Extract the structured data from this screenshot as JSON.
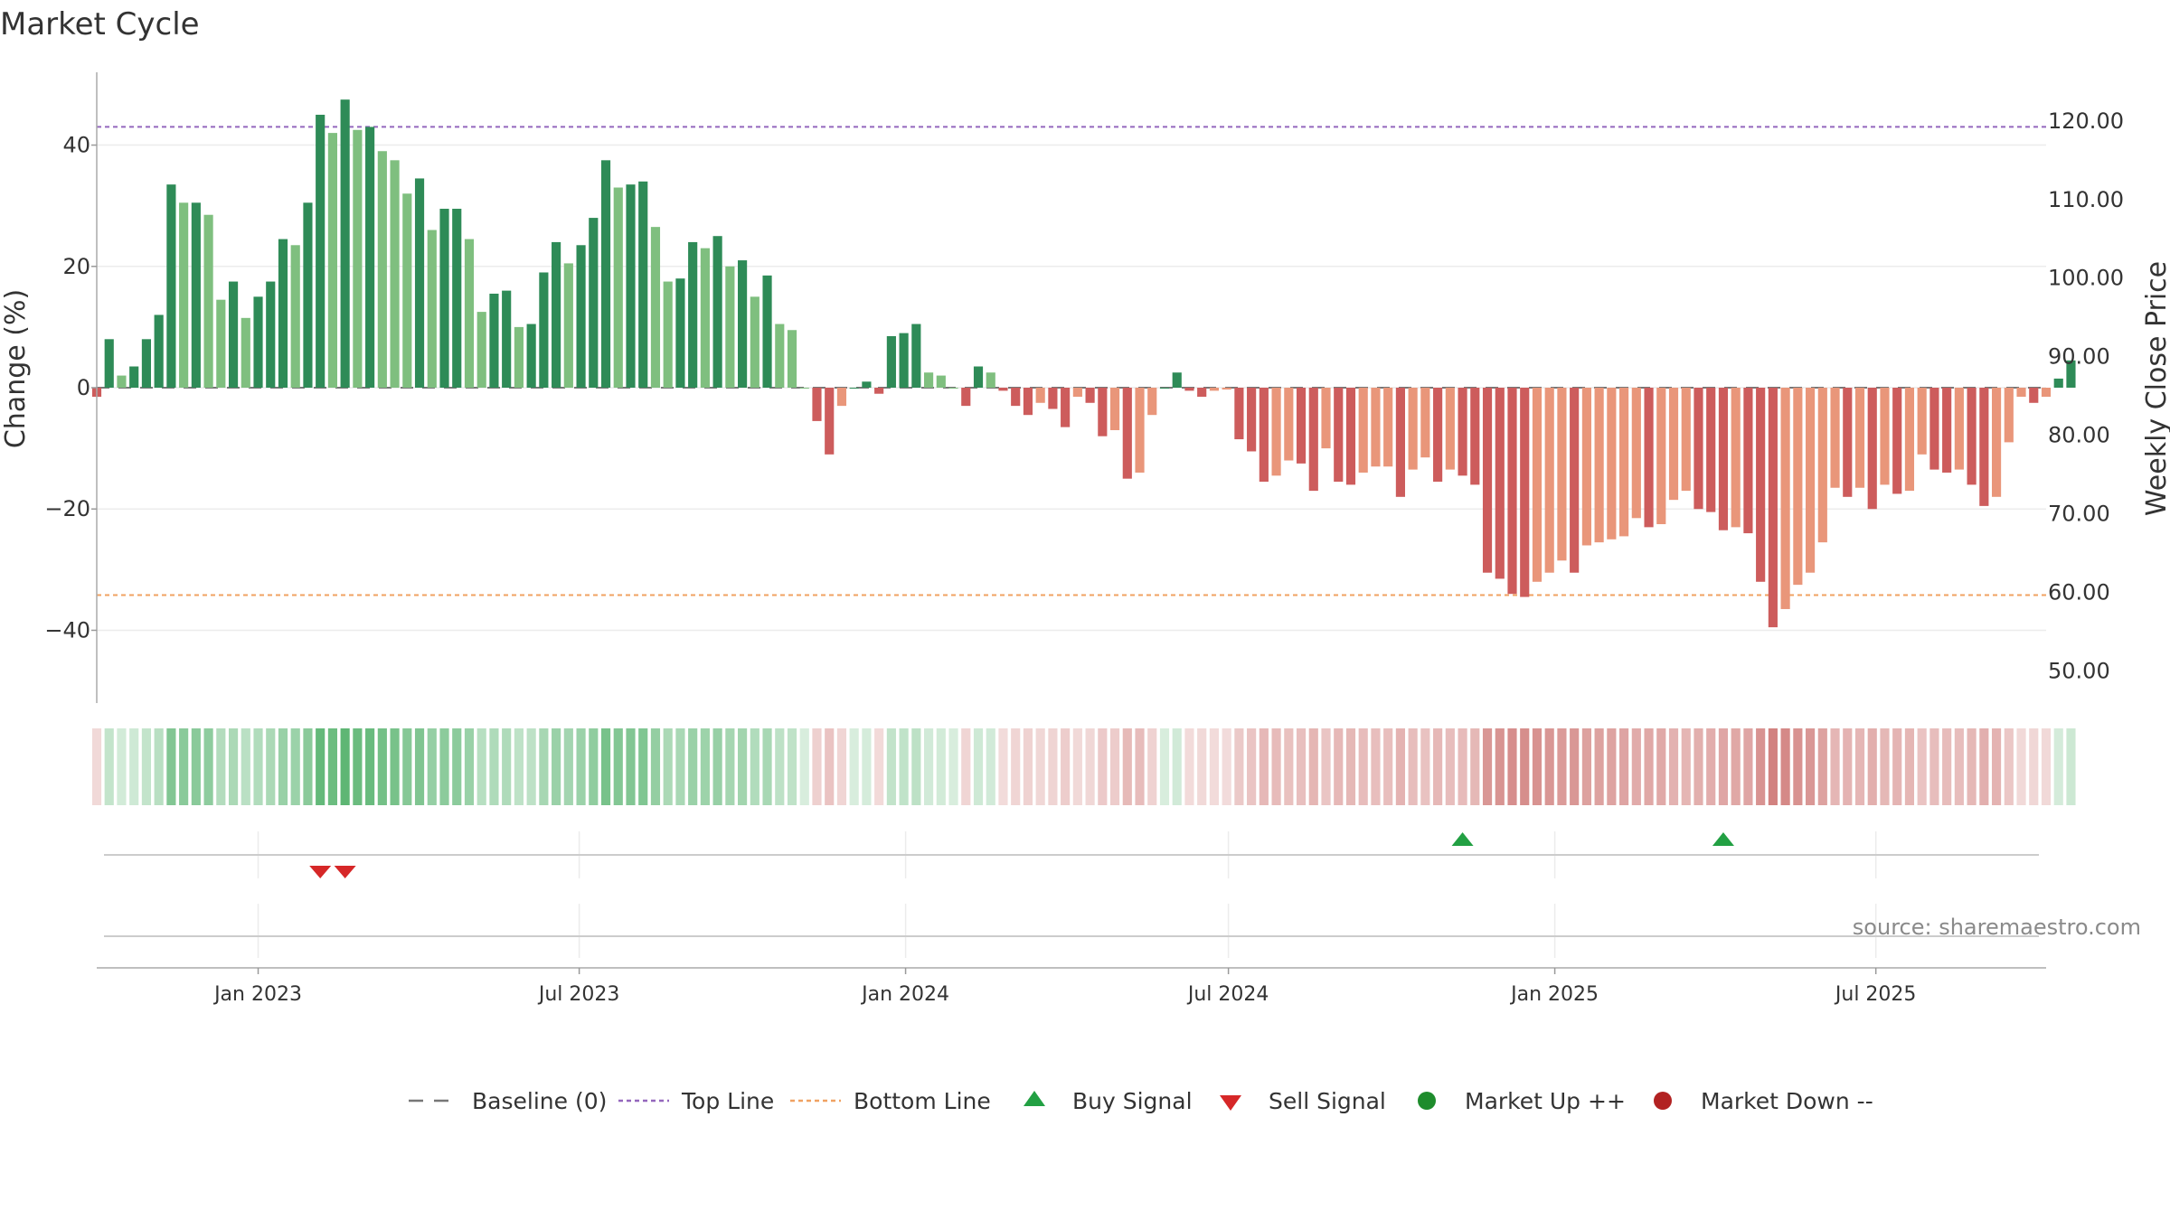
{
  "chart_data": {
    "type": "bar",
    "title": "Market Cycle",
    "ylabel_left": "Change (%)",
    "ylabel_right": "Weekly Close Price",
    "ylim_left": [
      -52,
      52
    ],
    "ylim_right": [
      45.9,
      126.2
    ],
    "yticks_left": [
      {
        "v": 40,
        "label": "40"
      },
      {
        "v": 20,
        "label": "20"
      },
      {
        "v": 0,
        "label": "0"
      },
      {
        "v": -20,
        "label": "−20"
      },
      {
        "v": -40,
        "label": "−40"
      }
    ],
    "yticks_right": [
      "120.00",
      "110.00",
      "100.00",
      "90.00",
      "80.00",
      "70.00",
      "60.00",
      "50.00"
    ],
    "x_start": "2022-10-02",
    "x_end": "2025-10-05",
    "x_ticks": [
      {
        "date": "2023-01-01",
        "label": "Jan 2023"
      },
      {
        "date": "2023-07-01",
        "label": "Jul 2023"
      },
      {
        "date": "2024-01-01",
        "label": "Jan 2024"
      },
      {
        "date": "2024-07-01",
        "label": "Jul 2024"
      },
      {
        "date": "2025-01-01",
        "label": "Jan 2025"
      },
      {
        "date": "2025-07-01",
        "label": "Jul 2025"
      }
    ],
    "first_week": "2022-10-02",
    "week_values": [
      -1.5,
      8,
      2,
      3.5,
      8,
      12,
      33.5,
      30.5,
      30.5,
      28.5,
      14.5,
      17.5,
      11.5,
      15,
      17.5,
      24.5,
      23.5,
      30.5,
      45,
      42,
      47.5,
      42.5,
      43,
      39,
      37.5,
      32,
      34.5,
      26,
      29.5,
      29.5,
      24.5,
      12.5,
      15.5,
      16,
      10,
      10.5,
      19,
      24,
      20.5,
      23.5,
      28,
      37.5,
      33,
      33.5,
      34,
      26.5,
      17.5,
      18,
      24,
      23,
      25,
      20,
      21,
      15,
      18.5,
      10.5,
      9.5,
      0,
      -5.5,
      -11,
      -3,
      0,
      1,
      -1,
      8.5,
      9,
      10.5,
      2.5,
      2,
      0,
      -3,
      3.5,
      2.5,
      -0.5,
      -3,
      -4.5,
      -2.5,
      -3.5,
      -6.5,
      -1.5,
      -2.5,
      -8,
      -7,
      -15,
      -14,
      -4.5,
      0,
      2.5,
      -0.5,
      -1.5,
      -0.5,
      -0.3,
      -8.5,
      -10.5,
      -15.5,
      -14.5,
      -12,
      -12.5,
      -17,
      -10,
      -15.5,
      -16,
      -14,
      -13,
      -13,
      -18,
      -13.5,
      -11.5,
      -15.5,
      -13.5,
      -14.5,
      -16,
      -30.5,
      -31.5,
      -34,
      -34.5,
      -32,
      -30.5,
      -28.5,
      -30.5,
      -26,
      -25.5,
      -25,
      -24.5,
      -21.5,
      -23,
      -22.5,
      -18.5,
      -17,
      -20,
      -20.5,
      -23.5,
      -23,
      -24,
      -32,
      -39.5,
      -36.5,
      -32.5,
      -30.5,
      -25.5,
      -16.5,
      -18,
      -16.5,
      -20,
      -16,
      -17.5,
      -17,
      -11,
      -13.5,
      -14,
      -13.5,
      -16,
      -19.5,
      -18,
      -9,
      -1.5,
      -2.5,
      -1.5,
      1.5,
      4.5
    ],
    "reference_lines": {
      "baseline_value": 0,
      "top_line_value": 43,
      "bottom_line_value": -34.2
    },
    "signals": {
      "sell": [
        "2023-02-05",
        "2023-02-19"
      ],
      "buy": [
        "2024-11-10",
        "2025-04-06"
      ]
    },
    "legend": [
      {
        "label": "Baseline (0)",
        "marker": "dash",
        "color": "#777777"
      },
      {
        "label": "Top Line",
        "marker": "dot-line",
        "color": "#9467bd"
      },
      {
        "label": "Bottom Line",
        "marker": "dot-line",
        "color": "#f0a262"
      },
      {
        "label": "Buy Signal",
        "marker": "triangle-up",
        "color": "#22a043"
      },
      {
        "label": "Sell Signal",
        "marker": "triangle-down",
        "color": "#d62728"
      },
      {
        "label": "Market Up ++",
        "marker": "circle",
        "color": "#1e8c2c"
      },
      {
        "label": "Market Down --",
        "marker": "circle",
        "color": "#b22222"
      }
    ],
    "colors": {
      "up_dark": "#2e8b57",
      "up_light": "#7fbf7f",
      "down_dark": "#cd5c5c",
      "down_light": "#e9967a",
      "heat_up": "#3aa655",
      "heat_down": "#c0504d"
    },
    "source": "source: sharemaestro.com",
    "grid": true
  }
}
